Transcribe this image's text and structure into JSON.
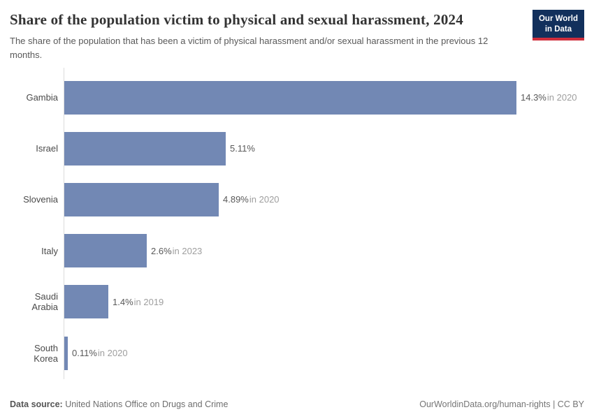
{
  "header": {
    "title": "Share of the population victim to physical and sexual harassment, 2024",
    "subtitle": "The share of the population that has been a victim of physical harassment and/or sexual harassment in the previous 12 months.",
    "logo": {
      "line1": "Our World",
      "line2": "in Data"
    }
  },
  "chart_data": {
    "type": "bar",
    "orientation": "horizontal",
    "title": "Share of the population victim to physical and sexual harassment, 2024",
    "categories": [
      "Gambia",
      "Israel",
      "Slovenia",
      "Italy",
      "Saudi Arabia",
      "South Korea"
    ],
    "values": [
      14.3,
      5.11,
      4.89,
      2.6,
      1.4,
      0.11
    ],
    "value_labels": [
      "14.3%",
      "5.11%",
      "4.89%",
      "2.6%",
      "1.4%",
      "0.11%"
    ],
    "year_labels": [
      "in 2020",
      "",
      "in 2020",
      "in 2023",
      "in 2019",
      "in 2020"
    ],
    "xlim": [
      0,
      14.3
    ],
    "grid": false,
    "legend": "none",
    "bar_color": "#7288b4",
    "axis_color": "#dcdcdc"
  },
  "footer": {
    "datasource_label": "Data source:",
    "datasource_value": " United Nations Office on Drugs and Crime",
    "attribution": "OurWorldinData.org/human-rights | CC BY"
  }
}
